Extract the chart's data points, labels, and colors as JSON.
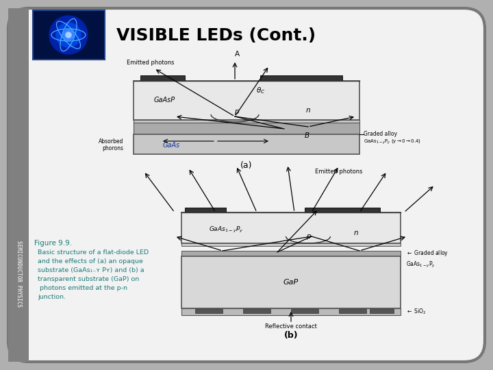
{
  "title": "VISIBLE LEDs (Cont.)",
  "title_fontsize": 18,
  "title_color": "#000000",
  "bg_color": "#b0b0b0",
  "panel_color": "#f2f2f2",
  "side_bar_color": "#808080",
  "side_text": "SEMICONDUCTOR PHYSICS",
  "side_text_color": "#dddddd",
  "header_bg": "#001040",
  "caption_color": "#1a7a7a",
  "figure_label": "Figure 9.9.",
  "caption_lines": [
    "Basic structure of a flat-diode LED",
    "and the effects of (a) an opaque",
    "substrate (GaAs₁₋ʏ Pʏ) and (b) a",
    "transparent substrate (GaP) on",
    " photons emitted at the p-n",
    "junction."
  ],
  "diagram_a_label": "(a)",
  "diagram_b_label": "(b)"
}
